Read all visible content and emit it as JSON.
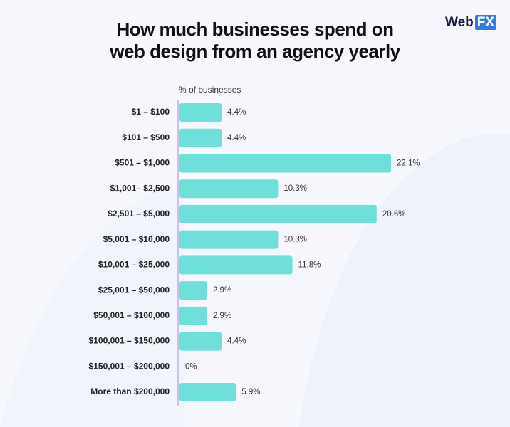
{
  "logo": {
    "prefix": "Web",
    "highlight": "FX"
  },
  "chart_data": {
    "type": "barh",
    "title": "How much businesses spend on\nweb design from an agency yearly",
    "x_label": "% of businesses",
    "categories": [
      "$1 – $100",
      "$101 – $500",
      "$501 – $1,000",
      "$1,001– $2,500",
      "$2,501 – $5,000",
      "$5,001 – $10,000",
      "$10,001 – $25,000",
      "$25,001 – $50,000",
      "$50,001 – $100,000",
      "$100,001 – $150,000",
      "$150,001 – $200,000",
      "More than $200,000"
    ],
    "values": [
      4.4,
      4.4,
      22.1,
      10.3,
      20.6,
      10.3,
      11.8,
      2.9,
      2.9,
      4.4,
      0,
      5.9
    ],
    "value_labels": [
      "4.4%",
      "4.4%",
      "22.1%",
      "10.3%",
      "20.6%",
      "10.3%",
      "11.8%",
      "2.9%",
      "2.9%",
      "4.4%",
      "0%",
      "5.9%"
    ],
    "color": "#6fe0d9"
  }
}
